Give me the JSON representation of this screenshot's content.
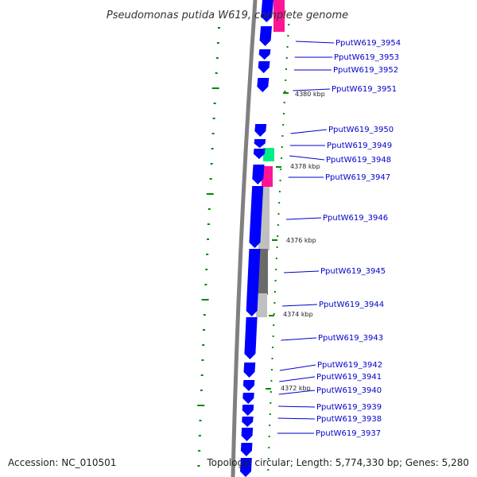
{
  "map": {
    "title": "Pseudomonas putida W619, complete genome",
    "accession_text": "Accession: NC_010501",
    "summary_text": "Topology: circular; Length: 5,774,330 bp; Genes: 5,280"
  },
  "colors": {
    "gene_forward": "#0000ff",
    "gene_reverse_band": "#ff1493",
    "gene_green": "#00ee88",
    "gc_light": "#c0c0c0",
    "gc_dark": "#6a6a6a",
    "backbone": "#808080",
    "tick": "#008800",
    "label": "#0000cc",
    "leader": "#0000cc"
  },
  "genes": [
    "PputW619_3954",
    "PputW619_3953",
    "PputW619_3952",
    "PputW619_3951",
    "PputW619_3950",
    "PputW619_3949",
    "PputW619_3948",
    "PputW619_3947",
    "PputW619_3946",
    "PputW619_3945",
    "PputW619_3944",
    "PputW619_3943",
    "PputW619_3942",
    "PputW619_3941",
    "PputW619_3940",
    "PputW619_3939",
    "PputW619_3938",
    "PputW619_3937"
  ],
  "scale_kbp": [
    "4380 kbp",
    "4378 kbp",
    "4376 kbp",
    "4374 kbp",
    "4372 kbp"
  ]
}
